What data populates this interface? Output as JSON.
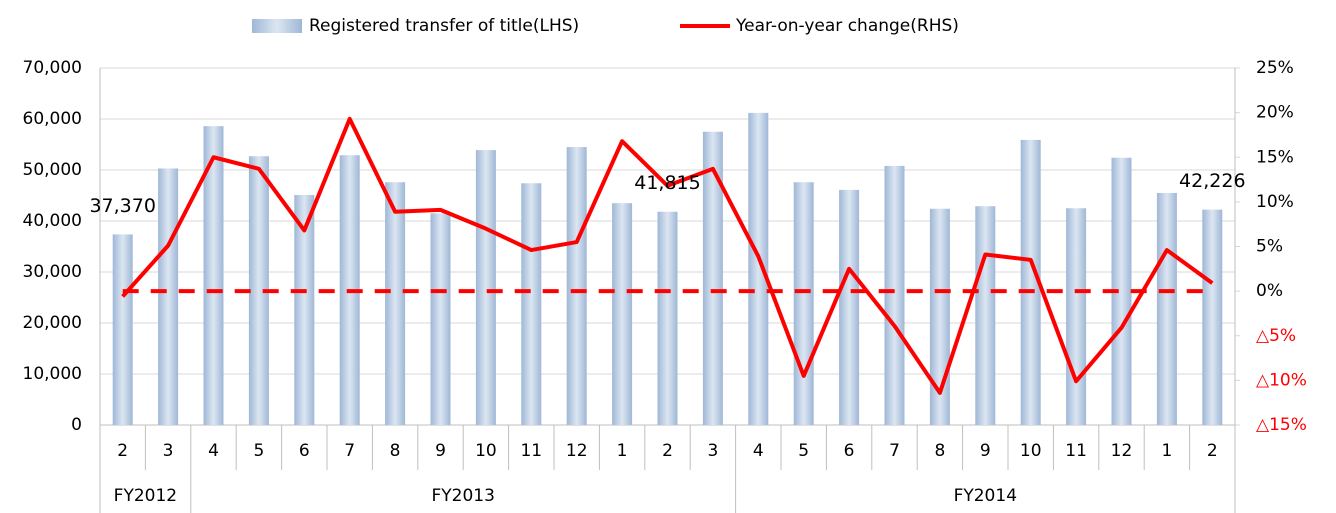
{
  "chart_data": {
    "type": "bar_line",
    "categories": [
      "2",
      "3",
      "4",
      "5",
      "6",
      "7",
      "8",
      "9",
      "10",
      "11",
      "12",
      "1",
      "2",
      "3",
      "4",
      "5",
      "6",
      "7",
      "8",
      "9",
      "10",
      "11",
      "12",
      "1",
      "2"
    ],
    "groups": [
      {
        "label": "FY2012",
        "count": 2
      },
      {
        "label": "FY2013",
        "count": 12
      },
      {
        "label": "FY2014",
        "count": 11
      }
    ],
    "series": [
      {
        "name": "Registered transfer of title(LHS)",
        "type": "bar",
        "color": "#b7cbe4",
        "values": [
          37370,
          50300,
          58600,
          52700,
          45100,
          52900,
          47600,
          41500,
          53900,
          47400,
          54500,
          43500,
          41815,
          57500,
          61200,
          47600,
          46100,
          50800,
          42400,
          42900,
          55900,
          42500,
          52400,
          45500,
          42226
        ],
        "value_labels": [
          "37,370",
          null,
          null,
          null,
          null,
          null,
          null,
          null,
          null,
          null,
          null,
          null,
          "41,815",
          null,
          null,
          null,
          null,
          null,
          null,
          null,
          null,
          null,
          null,
          null,
          "42,226"
        ]
      },
      {
        "name": "Year-on-year change(RHS)",
        "type": "line",
        "axis": "y2",
        "color": "#ff0000",
        "values": [
          -0.6,
          5.1,
          15.0,
          13.7,
          6.8,
          19.3,
          8.9,
          9.1,
          7.0,
          4.6,
          5.5,
          16.8,
          11.8,
          13.7,
          3.9,
          -9.5,
          2.5,
          -3.9,
          -11.4,
          4.1,
          3.5,
          -10.1,
          -4.1,
          4.6,
          0.9
        ]
      }
    ],
    "ylim": [
      0,
      70000
    ],
    "yticks": [
      0,
      {
        "value": 10000,
        "label": "10,000"
      },
      {
        "value": 20000,
        "label": "20,000"
      },
      {
        "value": 30000,
        "label": "30,000"
      },
      {
        "value": 40000,
        "label": "40,000"
      },
      {
        "value": 50000,
        "label": "50,000"
      },
      {
        "value": 60000,
        "label": "60,000"
      },
      {
        "value": 70000,
        "label": "70,000"
      }
    ],
    "y2lim": [
      -15,
      25
    ],
    "y2ticks": [
      {
        "value": -15,
        "label": "△15%"
      },
      {
        "value": -10,
        "label": "△10%"
      },
      {
        "value": -5,
        "label": "△5%"
      },
      {
        "value": 0,
        "label": "0%"
      },
      {
        "value": 5,
        "label": "5%"
      },
      {
        "value": 10,
        "label": "10%"
      },
      {
        "value": 15,
        "label": "15%"
      },
      {
        "value": 20,
        "label": "20%"
      },
      {
        "value": 25,
        "label": "25%"
      }
    ],
    "y2_negative_color": "#ff0000",
    "zero_line": 0,
    "grid": true,
    "legend": "top"
  }
}
